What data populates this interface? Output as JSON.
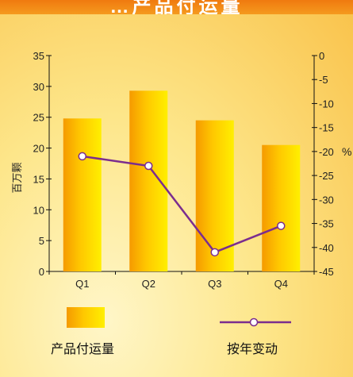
{
  "header": {
    "title": "…产品付运量"
  },
  "chart_data": {
    "type": "bar",
    "categories": [
      "Q1",
      "Q2",
      "Q3",
      "Q4"
    ],
    "series": [
      {
        "name": "产品付运量",
        "type": "bar",
        "axis": "left",
        "values": [
          24.8,
          29.3,
          24.5,
          20.5
        ],
        "color": "#f7b800"
      },
      {
        "name": "按年变动",
        "type": "line",
        "axis": "right",
        "values": [
          -21,
          -23,
          -41,
          -35.5
        ],
        "color": "#7b2d8e"
      }
    ],
    "ylabel": "百万颗",
    "y2label": "%",
    "ylim": [
      0,
      35
    ],
    "y2lim": [
      -45,
      0
    ],
    "yticks": [
      0,
      5,
      10,
      15,
      20,
      25,
      30,
      35
    ],
    "y2ticks": [
      0,
      -5,
      -10,
      -15,
      -20,
      -25,
      -30,
      -35,
      -40,
      -45
    ],
    "grid": false,
    "legend": "bottom"
  }
}
